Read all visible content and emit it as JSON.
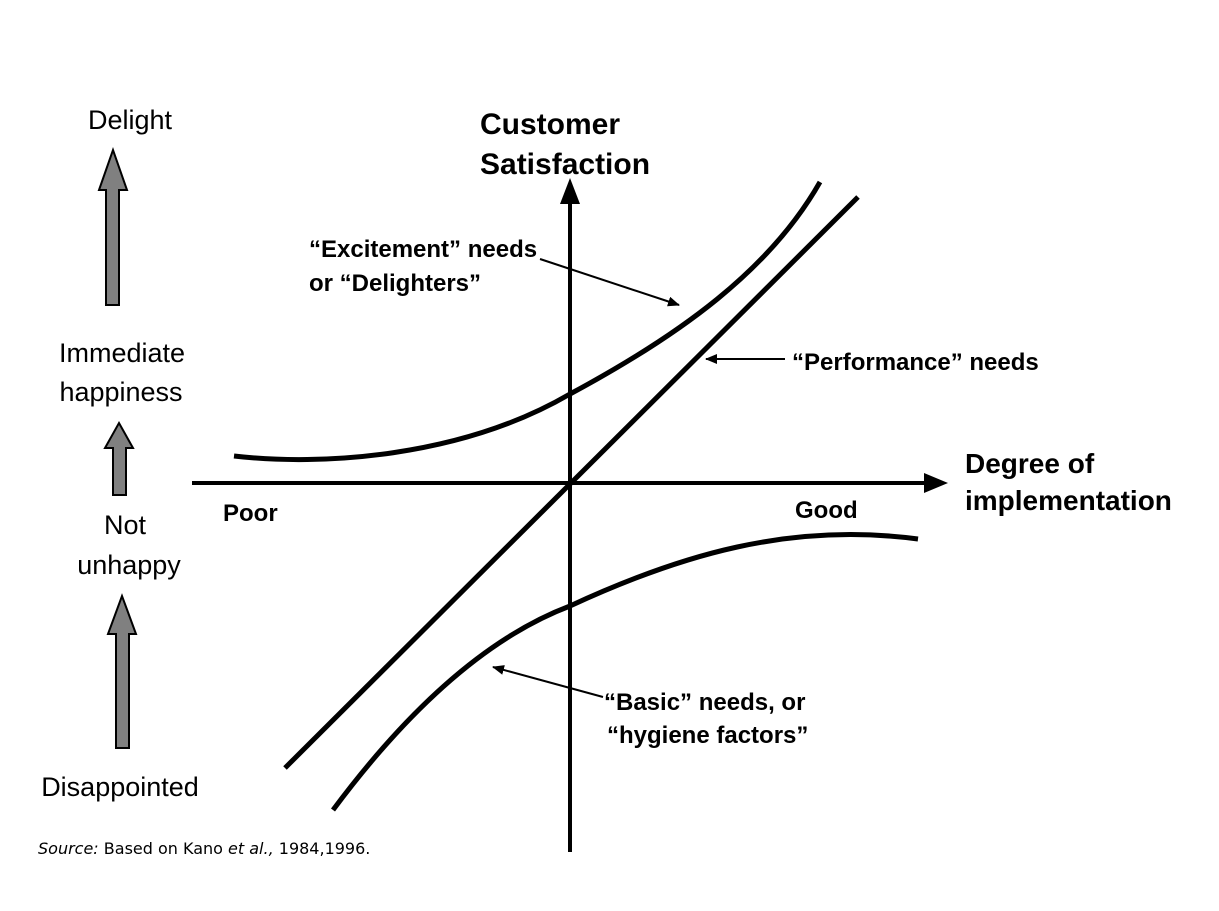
{
  "side_scale": {
    "levels": [
      "Delight",
      "Immediate",
      "happiness",
      "Not",
      "unhappy",
      "Disappointed"
    ]
  },
  "axes": {
    "y_label_line1": "Customer",
    "y_label_line2": "Satisfaction",
    "x_label_line1": "Degree of",
    "x_label_line2": "implementation",
    "x_left_end": "Poor",
    "x_right_end": "Good"
  },
  "curves": {
    "excitement_line1": "“Excitement” needs",
    "excitement_line2": "or “Delighters”",
    "performance": "“Performance” needs",
    "basic_line1": "“Basic” needs, or",
    "basic_line2": "“hygiene factors”"
  },
  "source": {
    "prefix": "Source:",
    "text_before": " Based on Kano ",
    "etal": "et al.,",
    "text_after": " 1984,1996."
  },
  "colors": {
    "side_arrow_fill": "#808080",
    "ink": "#000000"
  }
}
